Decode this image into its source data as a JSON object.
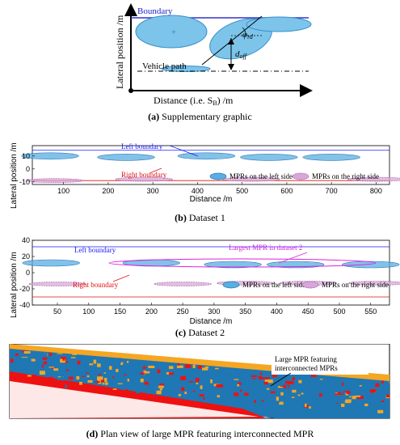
{
  "figure_a": {
    "ylabel": "Lateral position /m",
    "xlabel": "Distance (i.e. S",
    "xlabel_sub": "B",
    "xlabel_tail": ") /m",
    "boundary_label": "Boundary",
    "vehicle_path_label": "Vehicle path",
    "phi_label": "φ",
    "phi_sub": "rd",
    "d_label": "d",
    "d_sub": "off",
    "caption_letter": "(a)",
    "caption_text": " Supplementary graphic"
  },
  "figure_b": {
    "ylabel": "Lateral position /m",
    "xlabel": "Distance /m",
    "left_boundary_label": "Left boundary",
    "right_boundary_label": "Right boundary",
    "legend_left": "MPRs on the left side",
    "legend_right": "MPRs on the right side",
    "caption_letter": "(b)",
    "caption_text": " Dataset 1",
    "colors": {
      "left": "#5aaee0",
      "right": "#d9a6d9",
      "left_boundary": "#1a1aff",
      "right_boundary": "#e01010"
    }
  },
  "figure_c": {
    "ylabel": "Lateral position /m",
    "xlabel": "Distance /m",
    "left_boundary_label": "Left boundary",
    "right_boundary_label": "Right boundary",
    "largest_label": "Largest MPR in dataset 2",
    "legend_left": "MPRs on the left side",
    "legend_right": "MPRs on the right side",
    "caption_letter": "(c)",
    "caption_text": " Dataset 2",
    "colors": {
      "largest": "#e020e0"
    }
  },
  "figure_d": {
    "annotation_line1": "Large MPR featuring",
    "annotation_line2": "interconnected MPRs",
    "caption_letter": "(d)",
    "caption_text": " Plan view of large MPR featuring interconnected MPR",
    "colors": {
      "blue": "#1f77b4",
      "orange": "#f5a623",
      "red": "#ee1111"
    }
  },
  "chart_data": [
    {
      "type": "scatter",
      "title": "",
      "xlabel": "Distance /m",
      "ylabel": "Lateral position /m",
      "xticks": [
        100,
        200,
        300,
        400,
        500,
        600,
        700,
        800
      ],
      "yticks": [
        -10,
        0,
        10
      ],
      "xlim": [
        30,
        830
      ],
      "ylim": [
        -12,
        18
      ],
      "series": [
        {
          "name": "MPRs on the left side",
          "x": [
            70,
            240,
            420,
            560,
            700
          ],
          "y": [
            10,
            9,
            10,
            9,
            9
          ]
        },
        {
          "name": "MPRs on the right side",
          "x": [
            80,
            280,
            520,
            800
          ],
          "y": [
            -9,
            -8,
            -8,
            -8
          ]
        }
      ],
      "grid": false,
      "legend": "bottom-right"
    },
    {
      "type": "scatter",
      "title": "",
      "xlabel": "Distance /m",
      "ylabel": "Lateral position /m",
      "xticks": [
        50,
        100,
        150,
        200,
        250,
        300,
        350,
        400,
        450,
        500,
        550
      ],
      "yticks": [
        -40,
        -20,
        0,
        20,
        40
      ],
      "xlim": [
        10,
        580
      ],
      "ylim": [
        -40,
        40
      ],
      "series": [
        {
          "name": "MPRs on the left side",
          "x": [
            40,
            200,
            330,
            430,
            550
          ],
          "y": [
            12,
            12,
            10,
            10,
            10
          ]
        },
        {
          "name": "MPRs on the right side",
          "x": [
            50,
            250,
            350,
            450,
            560
          ],
          "y": [
            -14,
            -14,
            -13,
            -13,
            -13
          ]
        }
      ],
      "grid": false,
      "legend": "bottom-right"
    }
  ]
}
